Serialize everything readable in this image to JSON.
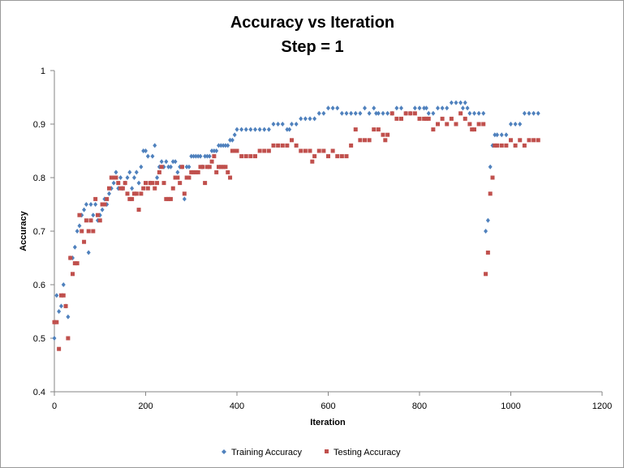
{
  "chart_data": {
    "type": "scatter",
    "title": "Accuracy vs Iteration",
    "subtitle": "Step = 1",
    "xlabel": "Iteration",
    "ylabel": "Accuracy",
    "xlim": [
      0,
      1200
    ],
    "ylim": [
      0.4,
      1
    ],
    "xticks": [
      0,
      200,
      400,
      600,
      800,
      1000,
      1200
    ],
    "yticks": [
      0.4,
      0.5,
      0.6,
      0.7,
      0.8,
      0.9,
      1
    ],
    "xtick_labels": [
      "0",
      "200",
      "400",
      "600",
      "800",
      "1000",
      "1200"
    ],
    "ytick_labels": [
      "0.4",
      "0.5",
      "0.6",
      "0.7",
      "0.8",
      "0.9",
      "1"
    ],
    "grid": false,
    "legend_position": "bottom",
    "series": [
      {
        "name": "Training Accuracy",
        "color": "#4f81bd",
        "marker": "diamond",
        "points": [
          [
            0,
            0.5
          ],
          [
            5,
            0.58
          ],
          [
            10,
            0.55
          ],
          [
            15,
            0.56
          ],
          [
            20,
            0.6
          ],
          [
            25,
            0.56
          ],
          [
            30,
            0.54
          ],
          [
            35,
            0.65
          ],
          [
            40,
            0.65
          ],
          [
            45,
            0.67
          ],
          [
            50,
            0.7
          ],
          [
            55,
            0.71
          ],
          [
            60,
            0.73
          ],
          [
            65,
            0.74
          ],
          [
            70,
            0.75
          ],
          [
            75,
            0.66
          ],
          [
            80,
            0.75
          ],
          [
            85,
            0.73
          ],
          [
            90,
            0.75
          ],
          [
            95,
            0.72
          ],
          [
            100,
            0.73
          ],
          [
            105,
            0.74
          ],
          [
            110,
            0.76
          ],
          [
            115,
            0.75
          ],
          [
            120,
            0.77
          ],
          [
            125,
            0.78
          ],
          [
            130,
            0.79
          ],
          [
            135,
            0.81
          ],
          [
            140,
            0.78
          ],
          [
            145,
            0.8
          ],
          [
            150,
            0.78
          ],
          [
            155,
            0.79
          ],
          [
            160,
            0.8
          ],
          [
            165,
            0.81
          ],
          [
            170,
            0.78
          ],
          [
            175,
            0.8
          ],
          [
            180,
            0.81
          ],
          [
            185,
            0.79
          ],
          [
            190,
            0.82
          ],
          [
            195,
            0.85
          ],
          [
            200,
            0.85
          ],
          [
            205,
            0.84
          ],
          [
            210,
            0.79
          ],
          [
            215,
            0.84
          ],
          [
            220,
            0.86
          ],
          [
            225,
            0.8
          ],
          [
            230,
            0.82
          ],
          [
            235,
            0.83
          ],
          [
            240,
            0.82
          ],
          [
            245,
            0.83
          ],
          [
            250,
            0.82
          ],
          [
            255,
            0.82
          ],
          [
            260,
            0.83
          ],
          [
            265,
            0.83
          ],
          [
            270,
            0.81
          ],
          [
            275,
            0.82
          ],
          [
            280,
            0.82
          ],
          [
            285,
            0.76
          ],
          [
            290,
            0.82
          ],
          [
            295,
            0.82
          ],
          [
            300,
            0.84
          ],
          [
            305,
            0.84
          ],
          [
            310,
            0.84
          ],
          [
            315,
            0.84
          ],
          [
            320,
            0.84
          ],
          [
            325,
            0.82
          ],
          [
            330,
            0.84
          ],
          [
            335,
            0.84
          ],
          [
            340,
            0.84
          ],
          [
            345,
            0.85
          ],
          [
            350,
            0.85
          ],
          [
            355,
            0.85
          ],
          [
            360,
            0.86
          ],
          [
            365,
            0.86
          ],
          [
            370,
            0.86
          ],
          [
            375,
            0.86
          ],
          [
            380,
            0.86
          ],
          [
            385,
            0.87
          ],
          [
            390,
            0.87
          ],
          [
            395,
            0.88
          ],
          [
            400,
            0.89
          ],
          [
            410,
            0.89
          ],
          [
            420,
            0.89
          ],
          [
            430,
            0.89
          ],
          [
            440,
            0.89
          ],
          [
            450,
            0.89
          ],
          [
            460,
            0.89
          ],
          [
            470,
            0.89
          ],
          [
            480,
            0.9
          ],
          [
            490,
            0.9
          ],
          [
            500,
            0.9
          ],
          [
            510,
            0.89
          ],
          [
            515,
            0.89
          ],
          [
            520,
            0.9
          ],
          [
            530,
            0.9
          ],
          [
            540,
            0.91
          ],
          [
            550,
            0.91
          ],
          [
            560,
            0.91
          ],
          [
            570,
            0.91
          ],
          [
            580,
            0.92
          ],
          [
            590,
            0.92
          ],
          [
            600,
            0.93
          ],
          [
            610,
            0.93
          ],
          [
            620,
            0.93
          ],
          [
            630,
            0.92
          ],
          [
            640,
            0.92
          ],
          [
            650,
            0.92
          ],
          [
            660,
            0.92
          ],
          [
            670,
            0.92
          ],
          [
            680,
            0.93
          ],
          [
            690,
            0.92
          ],
          [
            700,
            0.93
          ],
          [
            705,
            0.92
          ],
          [
            710,
            0.92
          ],
          [
            720,
            0.92
          ],
          [
            730,
            0.92
          ],
          [
            740,
            0.92
          ],
          [
            750,
            0.93
          ],
          [
            760,
            0.93
          ],
          [
            770,
            0.92
          ],
          [
            780,
            0.92
          ],
          [
            790,
            0.93
          ],
          [
            800,
            0.93
          ],
          [
            810,
            0.93
          ],
          [
            815,
            0.93
          ],
          [
            820,
            0.92
          ],
          [
            830,
            0.92
          ],
          [
            840,
            0.93
          ],
          [
            850,
            0.93
          ],
          [
            860,
            0.93
          ],
          [
            870,
            0.94
          ],
          [
            880,
            0.94
          ],
          [
            890,
            0.94
          ],
          [
            895,
            0.93
          ],
          [
            900,
            0.94
          ],
          [
            905,
            0.93
          ],
          [
            910,
            0.92
          ],
          [
            920,
            0.92
          ],
          [
            930,
            0.92
          ],
          [
            940,
            0.92
          ],
          [
            945,
            0.7
          ],
          [
            950,
            0.72
          ],
          [
            955,
            0.82
          ],
          [
            960,
            0.86
          ],
          [
            965,
            0.88
          ],
          [
            970,
            0.88
          ],
          [
            980,
            0.88
          ],
          [
            990,
            0.88
          ],
          [
            1000,
            0.9
          ],
          [
            1010,
            0.9
          ],
          [
            1020,
            0.9
          ],
          [
            1030,
            0.92
          ],
          [
            1040,
            0.92
          ],
          [
            1050,
            0.92
          ],
          [
            1060,
            0.92
          ]
        ]
      },
      {
        "name": "Testing Accuracy",
        "color": "#c0504d",
        "marker": "square",
        "points": [
          [
            0,
            0.53
          ],
          [
            5,
            0.53
          ],
          [
            10,
            0.48
          ],
          [
            15,
            0.58
          ],
          [
            20,
            0.58
          ],
          [
            25,
            0.56
          ],
          [
            30,
            0.5
          ],
          [
            35,
            0.65
          ],
          [
            40,
            0.62
          ],
          [
            45,
            0.64
          ],
          [
            50,
            0.64
          ],
          [
            55,
            0.73
          ],
          [
            60,
            0.7
          ],
          [
            65,
            0.68
          ],
          [
            70,
            0.72
          ],
          [
            75,
            0.7
          ],
          [
            80,
            0.72
          ],
          [
            85,
            0.7
          ],
          [
            90,
            0.76
          ],
          [
            95,
            0.73
          ],
          [
            100,
            0.72
          ],
          [
            105,
            0.75
          ],
          [
            110,
            0.75
          ],
          [
            115,
            0.76
          ],
          [
            120,
            0.78
          ],
          [
            125,
            0.8
          ],
          [
            130,
            0.8
          ],
          [
            135,
            0.8
          ],
          [
            140,
            0.79
          ],
          [
            145,
            0.78
          ],
          [
            150,
            0.78
          ],
          [
            155,
            0.79
          ],
          [
            160,
            0.77
          ],
          [
            165,
            0.76
          ],
          [
            170,
            0.76
          ],
          [
            175,
            0.77
          ],
          [
            180,
            0.77
          ],
          [
            185,
            0.74
          ],
          [
            190,
            0.77
          ],
          [
            195,
            0.78
          ],
          [
            200,
            0.79
          ],
          [
            205,
            0.78
          ],
          [
            210,
            0.79
          ],
          [
            215,
            0.79
          ],
          [
            220,
            0.78
          ],
          [
            225,
            0.79
          ],
          [
            230,
            0.81
          ],
          [
            235,
            0.82
          ],
          [
            240,
            0.79
          ],
          [
            245,
            0.76
          ],
          [
            250,
            0.76
          ],
          [
            255,
            0.76
          ],
          [
            260,
            0.78
          ],
          [
            265,
            0.8
          ],
          [
            270,
            0.8
          ],
          [
            275,
            0.79
          ],
          [
            280,
            0.82
          ],
          [
            285,
            0.77
          ],
          [
            290,
            0.8
          ],
          [
            295,
            0.8
          ],
          [
            300,
            0.81
          ],
          [
            305,
            0.81
          ],
          [
            310,
            0.81
          ],
          [
            315,
            0.81
          ],
          [
            320,
            0.82
          ],
          [
            325,
            0.82
          ],
          [
            330,
            0.79
          ],
          [
            335,
            0.82
          ],
          [
            340,
            0.82
          ],
          [
            345,
            0.83
          ],
          [
            350,
            0.84
          ],
          [
            355,
            0.81
          ],
          [
            360,
            0.82
          ],
          [
            365,
            0.82
          ],
          [
            370,
            0.82
          ],
          [
            375,
            0.82
          ],
          [
            380,
            0.81
          ],
          [
            385,
            0.8
          ],
          [
            390,
            0.85
          ],
          [
            395,
            0.85
          ],
          [
            400,
            0.85
          ],
          [
            410,
            0.84
          ],
          [
            420,
            0.84
          ],
          [
            430,
            0.84
          ],
          [
            440,
            0.84
          ],
          [
            450,
            0.85
          ],
          [
            460,
            0.85
          ],
          [
            470,
            0.85
          ],
          [
            480,
            0.86
          ],
          [
            490,
            0.86
          ],
          [
            500,
            0.86
          ],
          [
            510,
            0.86
          ],
          [
            520,
            0.87
          ],
          [
            530,
            0.86
          ],
          [
            540,
            0.85
          ],
          [
            550,
            0.85
          ],
          [
            560,
            0.85
          ],
          [
            565,
            0.83
          ],
          [
            570,
            0.84
          ],
          [
            580,
            0.85
          ],
          [
            590,
            0.85
          ],
          [
            600,
            0.84
          ],
          [
            610,
            0.85
          ],
          [
            620,
            0.84
          ],
          [
            630,
            0.84
          ],
          [
            640,
            0.84
          ],
          [
            650,
            0.86
          ],
          [
            660,
            0.89
          ],
          [
            670,
            0.87
          ],
          [
            680,
            0.87
          ],
          [
            690,
            0.87
          ],
          [
            700,
            0.89
          ],
          [
            710,
            0.89
          ],
          [
            720,
            0.88
          ],
          [
            725,
            0.87
          ],
          [
            730,
            0.88
          ],
          [
            740,
            0.92
          ],
          [
            750,
            0.91
          ],
          [
            760,
            0.91
          ],
          [
            770,
            0.92
          ],
          [
            780,
            0.92
          ],
          [
            790,
            0.92
          ],
          [
            800,
            0.91
          ],
          [
            810,
            0.91
          ],
          [
            815,
            0.91
          ],
          [
            820,
            0.91
          ],
          [
            830,
            0.89
          ],
          [
            840,
            0.9
          ],
          [
            850,
            0.91
          ],
          [
            860,
            0.9
          ],
          [
            870,
            0.91
          ],
          [
            880,
            0.9
          ],
          [
            890,
            0.92
          ],
          [
            900,
            0.91
          ],
          [
            910,
            0.9
          ],
          [
            915,
            0.89
          ],
          [
            920,
            0.89
          ],
          [
            930,
            0.9
          ],
          [
            940,
            0.9
          ],
          [
            945,
            0.62
          ],
          [
            950,
            0.66
          ],
          [
            955,
            0.77
          ],
          [
            960,
            0.8
          ],
          [
            965,
            0.86
          ],
          [
            970,
            0.86
          ],
          [
            980,
            0.86
          ],
          [
            990,
            0.86
          ],
          [
            1000,
            0.87
          ],
          [
            1010,
            0.86
          ],
          [
            1020,
            0.87
          ],
          [
            1030,
            0.86
          ],
          [
            1040,
            0.87
          ],
          [
            1050,
            0.87
          ],
          [
            1060,
            0.87
          ]
        ]
      }
    ]
  }
}
